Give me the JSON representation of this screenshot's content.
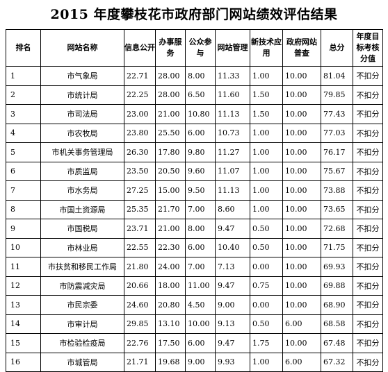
{
  "title": "2015 年度攀枝花市政府部门网站绩效评估结果",
  "headers": [
    "排名",
    "网站名称",
    "信息公开",
    "办事服务",
    "公众参与",
    "网站管理",
    "新技术应用",
    "政府网站普查",
    "总分",
    "年度目标考核分值"
  ],
  "rows": [
    [
      "1",
      "市气象局",
      "22.71",
      "28.00",
      "8.00",
      "11.33",
      "1.00",
      "10.00",
      "81.04",
      "不扣分"
    ],
    [
      "2",
      "市统计局",
      "22.25",
      "28.00",
      "6.50",
      "11.60",
      "1.50",
      "10.00",
      "79.85",
      "不扣分"
    ],
    [
      "3",
      "市司法局",
      "23.00",
      "21.00",
      "10.80",
      "11.13",
      "1.50",
      "10.00",
      "77.43",
      "不扣分"
    ],
    [
      "4",
      "市农牧局",
      "23.80",
      "25.50",
      "6.00",
      "10.73",
      "1.00",
      "10.00",
      "77.03",
      "不扣分"
    ],
    [
      "5",
      "市机关事务管理局",
      "26.30",
      "17.80",
      "9.80",
      "11.27",
      "1.00",
      "10.00",
      "76.17",
      "不扣分"
    ],
    [
      "6",
      "市质监局",
      "23.50",
      "20.50",
      "9.60",
      "11.07",
      "1.00",
      "10.00",
      "75.67",
      "不扣分"
    ],
    [
      "7",
      "市水务局",
      "27.25",
      "15.00",
      "9.50",
      "11.13",
      "1.00",
      "10.00",
      "73.88",
      "不扣分"
    ],
    [
      "8",
      "市国土资源局",
      "25.35",
      "21.70",
      "7.00",
      "8.60",
      "1.00",
      "10.00",
      "73.65",
      "不扣分"
    ],
    [
      "9",
      "市国税局",
      "23.71",
      "21.00",
      "8.00",
      "9.47",
      "0.50",
      "10.00",
      "72.68",
      "不扣分"
    ],
    [
      "10",
      "市林业局",
      "22.55",
      "22.30",
      "6.00",
      "10.40",
      "0.50",
      "10.00",
      "71.75",
      "不扣分"
    ],
    [
      "11",
      "市扶贫和移民工作局",
      "21.80",
      "24.00",
      "7.00",
      "7.13",
      "0.00",
      "10.00",
      "69.93",
      "不扣分"
    ],
    [
      "12",
      "市防震减灾局",
      "20.66",
      "18.00",
      "11.00",
      "9.47",
      "0.75",
      "10.00",
      "69.88",
      "不扣分"
    ],
    [
      "13",
      "市民宗委",
      "24.60",
      "20.80",
      "4.50",
      "9.00",
      "0.00",
      "10.00",
      "68.90",
      "不扣分"
    ],
    [
      "14",
      "市审计局",
      "29.85",
      "13.10",
      "10.00",
      "9.13",
      "0.50",
      "6.00",
      "68.58",
      "不扣分"
    ],
    [
      "15",
      "市检验检疫局",
      "22.76",
      "17.50",
      "6.00",
      "9.47",
      "1.75",
      "10.00",
      "67.48",
      "不扣分"
    ],
    [
      "16",
      "市城管局",
      "21.71",
      "19.68",
      "9.00",
      "9.93",
      "1.00",
      "6.00",
      "67.32",
      "不扣分"
    ]
  ]
}
